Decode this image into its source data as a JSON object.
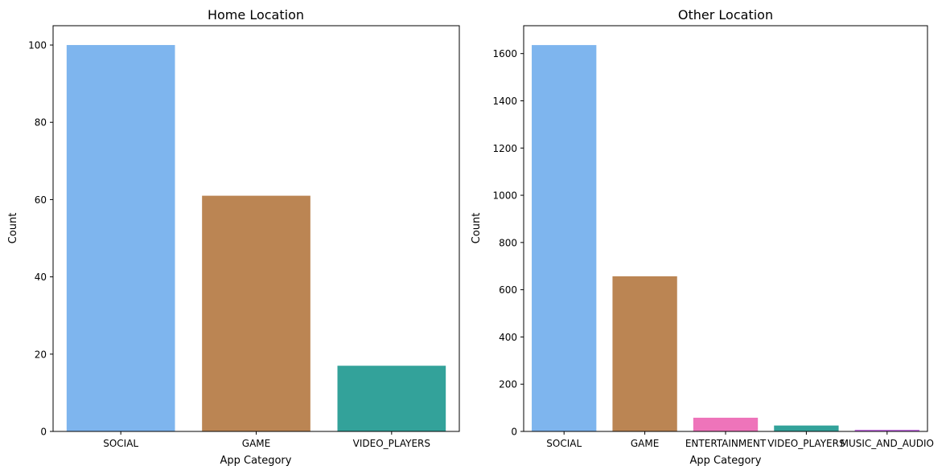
{
  "chart_data": [
    {
      "type": "bar",
      "title": "Home Location",
      "xlabel": "App Category",
      "ylabel": "Count",
      "categories": [
        "SOCIAL",
        "GAME",
        "VIDEO_PLAYERS"
      ],
      "values": [
        100,
        61,
        17
      ],
      "colors": [
        "#7eb5ee",
        "#bb8553",
        "#33a29a"
      ],
      "ylim": [
        0,
        105
      ],
      "yticks": [
        0,
        20,
        40,
        60,
        80,
        100
      ],
      "grid": false,
      "legend": "none"
    },
    {
      "type": "bar",
      "title": "Other Location",
      "xlabel": "App Category",
      "ylabel": "Count",
      "categories": [
        "SOCIAL",
        "GAME",
        "ENTERTAINMENT",
        "VIDEO_PLAYERS",
        "MUSIC_AND_AUDIO"
      ],
      "values": [
        1636,
        657,
        58,
        25,
        7
      ],
      "colors": [
        "#7eb5ee",
        "#bb8553",
        "#ee74ba",
        "#33a29a",
        "#c26edf"
      ],
      "ylim": [
        0,
        1718
      ],
      "yticks": [
        0,
        200,
        400,
        600,
        800,
        1000,
        1200,
        1400,
        1600
      ],
      "grid": false,
      "legend": "none"
    }
  ]
}
